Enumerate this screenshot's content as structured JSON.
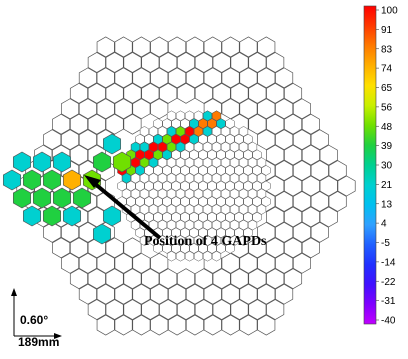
{
  "colorscale": {
    "labels": [
      "100",
      "91",
      "83",
      "74",
      "65",
      "56",
      "48",
      "39",
      "30",
      "21",
      "13",
      "4",
      "-5",
      "-14",
      "-22",
      "-31",
      "-40"
    ],
    "colors": [
      "#ff0000",
      "#ff3a00",
      "#ff7a00",
      "#ffb000",
      "#ffe000",
      "#c8f000",
      "#70e000",
      "#20d040",
      "#00d090",
      "#00d0d0",
      "#00c0f0",
      "#30a0ff",
      "#2060ff",
      "#2030ff",
      "#4010ff",
      "#8000ff",
      "#c000ff"
    ]
  },
  "annotation": {
    "text": "Position of 4 GAPDs"
  },
  "scale": {
    "angle": "0.60°",
    "size": "189mm"
  },
  "colors": {
    "outline": "#555555",
    "background": "#ffffff",
    "gapd": "#ffb000"
  }
}
